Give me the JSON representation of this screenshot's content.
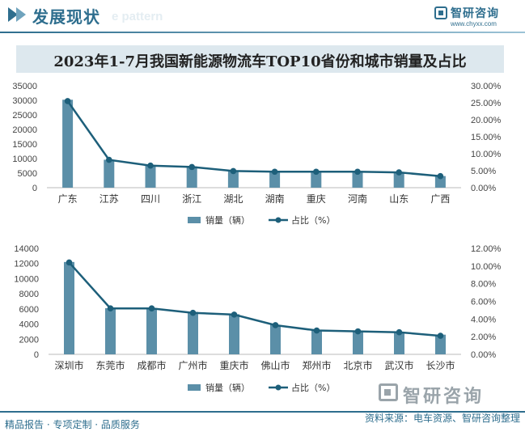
{
  "header": {
    "title": "发展现状",
    "watermark": "e pattern",
    "logo_name": "智研咨询",
    "logo_url": "www.chyxx.com"
  },
  "chart_title": "2023年1-7月我国新能源物流车TOP10省份和城市销量及占比",
  "colors": {
    "bar": "#5b8fa8",
    "line": "#1d5f7a",
    "axis": "#bbbbbb"
  },
  "legend": {
    "bar_label": "销量（辆）",
    "line_label": "占比（%）",
    "placement": "bottom-center"
  },
  "chart_data": [
    {
      "type": "bar",
      "categories": [
        "广东",
        "江苏",
        "四川",
        "浙江",
        "湖北",
        "湖南",
        "重庆",
        "河南",
        "山东",
        "广西"
      ],
      "series": [
        {
          "name": "销量（辆）",
          "type": "bar",
          "axis": "left",
          "values": [
            30200,
            9600,
            7800,
            7300,
            5900,
            5500,
            5600,
            5600,
            5200,
            4000
          ]
        },
        {
          "name": "占比（%）",
          "type": "line",
          "axis": "right",
          "values": [
            25.5,
            8.2,
            6.5,
            6.1,
            4.9,
            4.7,
            4.7,
            4.7,
            4.5,
            3.4
          ]
        }
      ],
      "ylim_left": [
        0,
        35000
      ],
      "yticks_left": [
        "0",
        "5000",
        "10000",
        "15000",
        "20000",
        "25000",
        "30000",
        "35000"
      ],
      "ylim_right": [
        0,
        30
      ],
      "yticks_right": [
        "0.00%",
        "5.00%",
        "10.00%",
        "15.00%",
        "20.00%",
        "25.00%",
        "30.00%"
      ],
      "legend_bar": "销量（辆）",
      "legend_line": "占比（%）"
    },
    {
      "type": "bar",
      "categories": [
        "深圳市",
        "东莞市",
        "成都市",
        "广州市",
        "重庆市",
        "佛山市",
        "郑州市",
        "北京市",
        "武汉市",
        "长沙市"
      ],
      "series": [
        {
          "name": "销量（辆）",
          "type": "bar",
          "axis": "left",
          "values": [
            12200,
            6100,
            6100,
            5600,
            5300,
            3900,
            3100,
            3000,
            2900,
            2600
          ]
        },
        {
          "name": "占比（%）",
          "type": "line",
          "axis": "right",
          "values": [
            10.4,
            5.2,
            5.2,
            4.7,
            4.5,
            3.3,
            2.7,
            2.6,
            2.5,
            2.1
          ]
        }
      ],
      "ylim_left": [
        0,
        14000
      ],
      "yticks_left": [
        "0",
        "2000",
        "4000",
        "6000",
        "8000",
        "10000",
        "12000",
        "14000"
      ],
      "ylim_right": [
        0,
        12
      ],
      "yticks_right": [
        "0.00%",
        "2.00%",
        "4.00%",
        "6.00%",
        "8.00%",
        "10.00%",
        "12.00%"
      ],
      "legend_bar": "销量（辆）",
      "legend_line": "占比（%）"
    }
  ],
  "footer": {
    "logo_name": "智研咨询",
    "left_text": "精品报告 · 专项定制 · 品质服务",
    "source_text": "资料来源：电车资源、智研咨询整理"
  }
}
